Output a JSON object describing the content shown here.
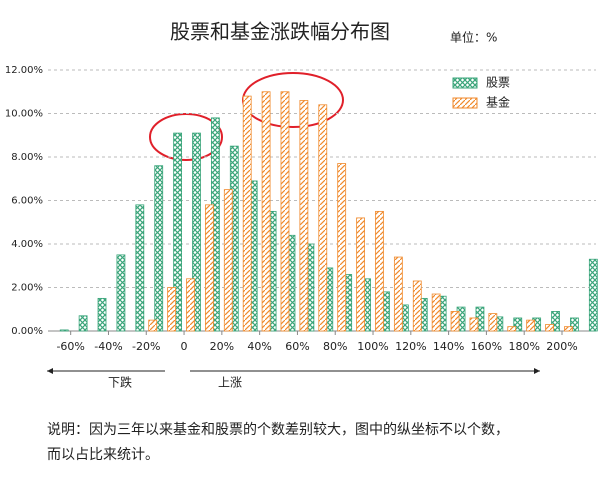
{
  "chart_data": {
    "type": "bar",
    "title": "股票和基金涨跌幅分布图",
    "subtitle": "单位：%",
    "x": [
      -65,
      -55,
      -45,
      -35,
      -25,
      -15,
      -5,
      5,
      15,
      25,
      35,
      45,
      55,
      65,
      75,
      85,
      95,
      105,
      115,
      125,
      135,
      145,
      155,
      165,
      175,
      185,
      195,
      205,
      215
    ],
    "series": [
      {
        "name": "股票",
        "color": "#3aa57a",
        "values": [
          0.05,
          0.7,
          1.5,
          3.5,
          5.8,
          7.6,
          9.1,
          9.1,
          9.8,
          8.5,
          6.9,
          5.5,
          4.4,
          4.0,
          2.9,
          2.6,
          2.4,
          1.8,
          1.2,
          1.5,
          1.6,
          1.1,
          1.1,
          0.65,
          0.6,
          0.6,
          0.9,
          0.6,
          3.3
        ]
      },
      {
        "name": "基金",
        "color": "#f08a2c",
        "values": [
          0,
          0,
          0,
          0,
          0,
          0.5,
          2.0,
          2.4,
          5.8,
          6.5,
          10.8,
          11.0,
          11.0,
          10.6,
          10.4,
          7.7,
          5.2,
          5.5,
          3.4,
          2.3,
          1.7,
          0.9,
          0.6,
          0.8,
          0.2,
          0.5,
          0.3,
          0.2,
          0
        ]
      }
    ],
    "xlim": [
      -72,
      218
    ],
    "xticks": [
      {
        "value": -60,
        "label": "-60%"
      },
      {
        "value": -40,
        "label": "-40%"
      },
      {
        "value": -20,
        "label": "-20%"
      },
      0,
      {
        "value": 20,
        "label": "20%"
      },
      {
        "value": 40,
        "label": "40%"
      },
      {
        "value": 60,
        "label": "60%"
      },
      {
        "value": 80,
        "label": "80%"
      },
      {
        "value": 100,
        "label": "100%"
      },
      {
        "value": 120,
        "label": "120%"
      },
      {
        "value": 140,
        "label": "140%"
      },
      {
        "value": 160,
        "label": "160%"
      },
      {
        "value": 180,
        "label": "180%"
      },
      {
        "value": 200,
        "label": "200%"
      }
    ],
    "ylim": [
      0,
      12
    ],
    "yticks": [
      {
        "value": 0,
        "label": "0.00%"
      },
      {
        "value": 2,
        "label": "2.00%"
      },
      {
        "value": 4,
        "label": "4.00%"
      },
      {
        "value": 6,
        "label": "6.00%"
      },
      {
        "value": 8,
        "label": "8.00%"
      },
      {
        "value": 10,
        "label": "10.00%"
      },
      {
        "value": 12,
        "label": "12.00%"
      }
    ],
    "grid": true,
    "legend": "top-right",
    "annotations": [
      "下跌",
      "上涨"
    ],
    "note": [
      "说明：因为三年以来基金和股票的个数差别较大，图中的纵坐标不以个数，",
      "而以占比来统计。"
    ]
  }
}
